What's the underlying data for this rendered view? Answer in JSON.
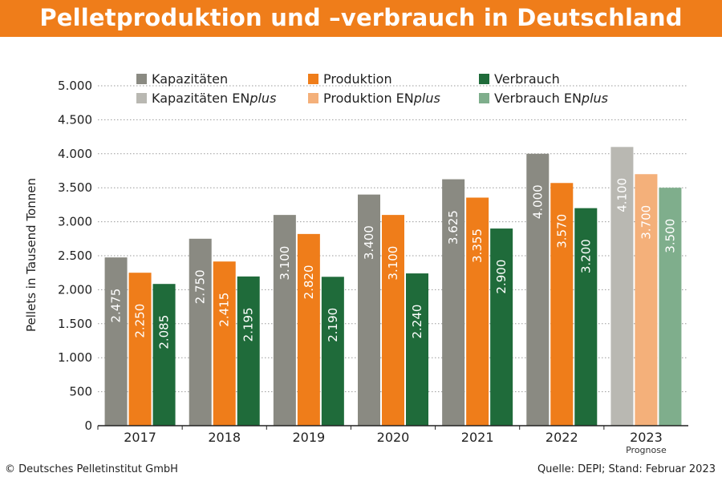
{
  "header": {
    "title": "Pelletproduktion und –verbrauch in Deutschland"
  },
  "colors": {
    "kapazitaeten": "#8a8a82",
    "produktion": "#ef7d1a",
    "verbrauch": "#1f6b3a",
    "kapazitaeten_forecast": "#b9b8b2",
    "produktion_forecast": "#f4b07a",
    "verbrauch_forecast": "#7fae8c"
  },
  "legend": {
    "row1": [
      "Kapazitäten",
      "Produktion",
      "Verbrauch"
    ],
    "row2_prefix": [
      "Kapazitäten EN",
      "Produktion EN",
      "Verbrauch EN"
    ],
    "row2_suffix": "plus"
  },
  "chart_data": {
    "type": "bar",
    "categories": [
      "2017",
      "2018",
      "2019",
      "2020",
      "2021",
      "2022",
      "2023"
    ],
    "category_note": {
      "2023": "Prognose"
    },
    "series": [
      {
        "name": "Kapazitäten",
        "values": [
          2475,
          2750,
          3100,
          3400,
          3625,
          4000,
          4100
        ],
        "labels": [
          "2.475",
          "2.750",
          "3.100",
          "3.400",
          "3.625",
          "4.000",
          "4.100"
        ]
      },
      {
        "name": "Produktion",
        "values": [
          2250,
          2415,
          2820,
          3100,
          3355,
          3570,
          3700
        ],
        "labels": [
          "2.250",
          "2.415",
          "2.820",
          "3.100",
          "3.355",
          "3.570",
          "3.700"
        ]
      },
      {
        "name": "Verbrauch",
        "values": [
          2085,
          2195,
          2190,
          2240,
          2900,
          3200,
          3500
        ],
        "labels": [
          "2.085",
          "2.195",
          "2.190",
          "2.240",
          "2.900",
          "3.200",
          "3.500"
        ]
      }
    ],
    "ylabel": "Pellets in Tausend Tonnen",
    "ylim": [
      0,
      5000
    ],
    "yticks": [
      0,
      500,
      1000,
      1500,
      2000,
      2500,
      3000,
      3500,
      4000,
      4500,
      5000
    ],
    "ytick_labels": [
      "0",
      "500",
      "1.000",
      "1.500",
      "2.000",
      "2.500",
      "3.000",
      "3.500",
      "4.000",
      "4.500",
      "5.000"
    ],
    "grid": true,
    "legend_position": "top"
  },
  "footer": {
    "left": "© Deutsches Pelletinstitut GmbH",
    "right": "Quelle: DEPI; Stand: Februar 2023"
  }
}
